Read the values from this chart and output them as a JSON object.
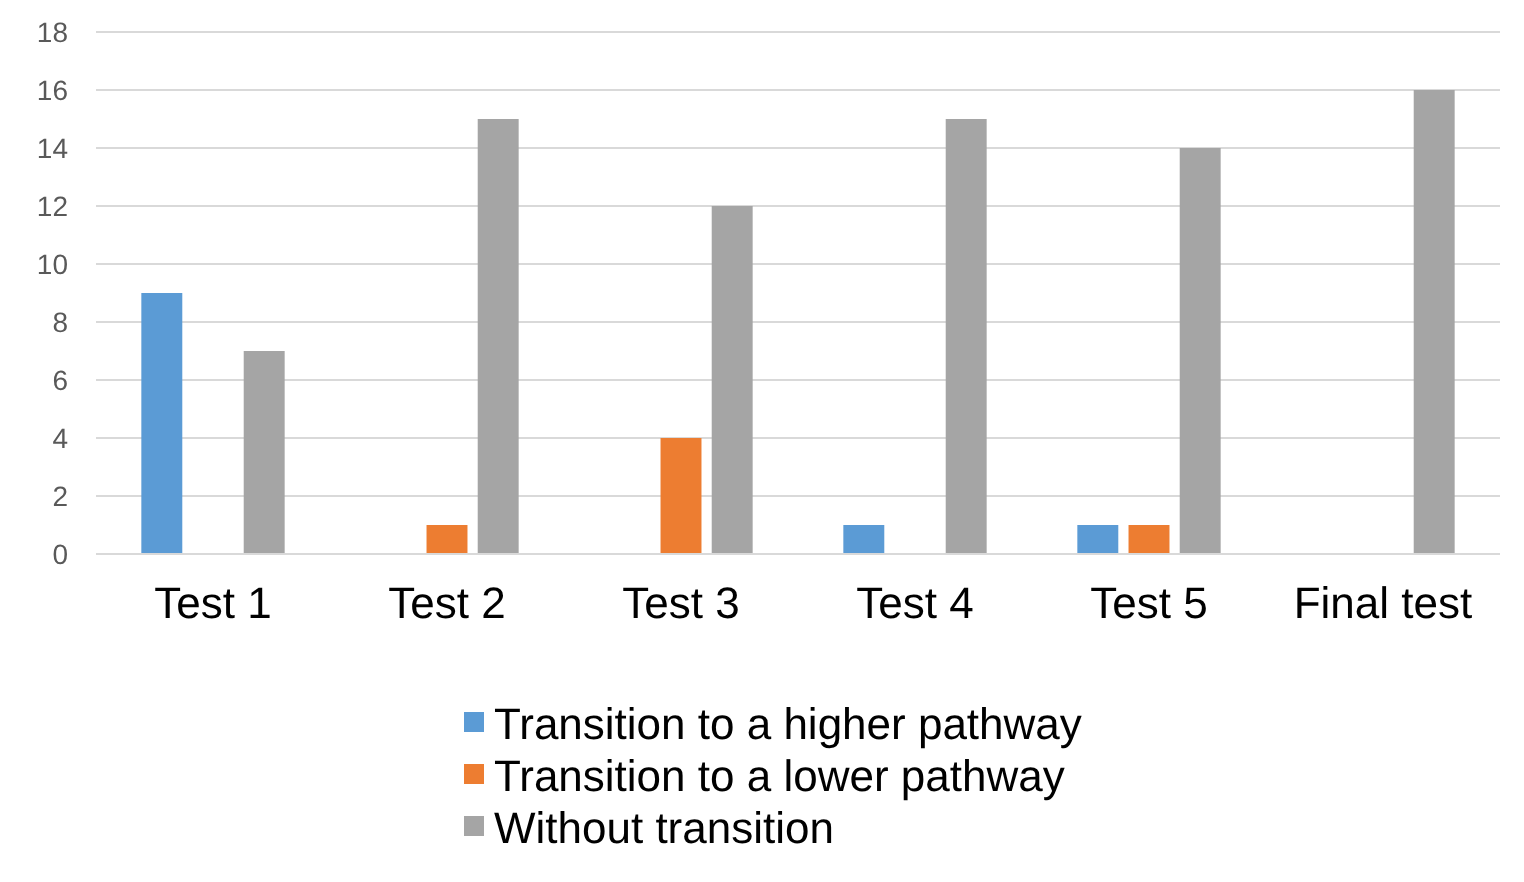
{
  "chart_data": {
    "type": "bar",
    "categories": [
      "Test 1",
      "Test 2",
      "Test 3",
      "Test 4",
      "Test 5",
      "Final test"
    ],
    "series": [
      {
        "name": "Transition to a higher pathway",
        "color": "#5b9bd5",
        "values": [
          9,
          0,
          0,
          1,
          1,
          0
        ]
      },
      {
        "name": "Transition to a lower pathway",
        "color": "#ed7d31",
        "values": [
          0,
          1,
          4,
          0,
          1,
          0
        ]
      },
      {
        "name": "Without transition",
        "color": "#a5a5a5",
        "values": [
          7,
          15,
          12,
          15,
          14,
          16
        ]
      }
    ],
    "ylim": [
      0,
      18
    ],
    "yticks": [
      0,
      2,
      4,
      6,
      8,
      10,
      12,
      14,
      16,
      18
    ],
    "grid": "y",
    "legend": "bottom"
  }
}
